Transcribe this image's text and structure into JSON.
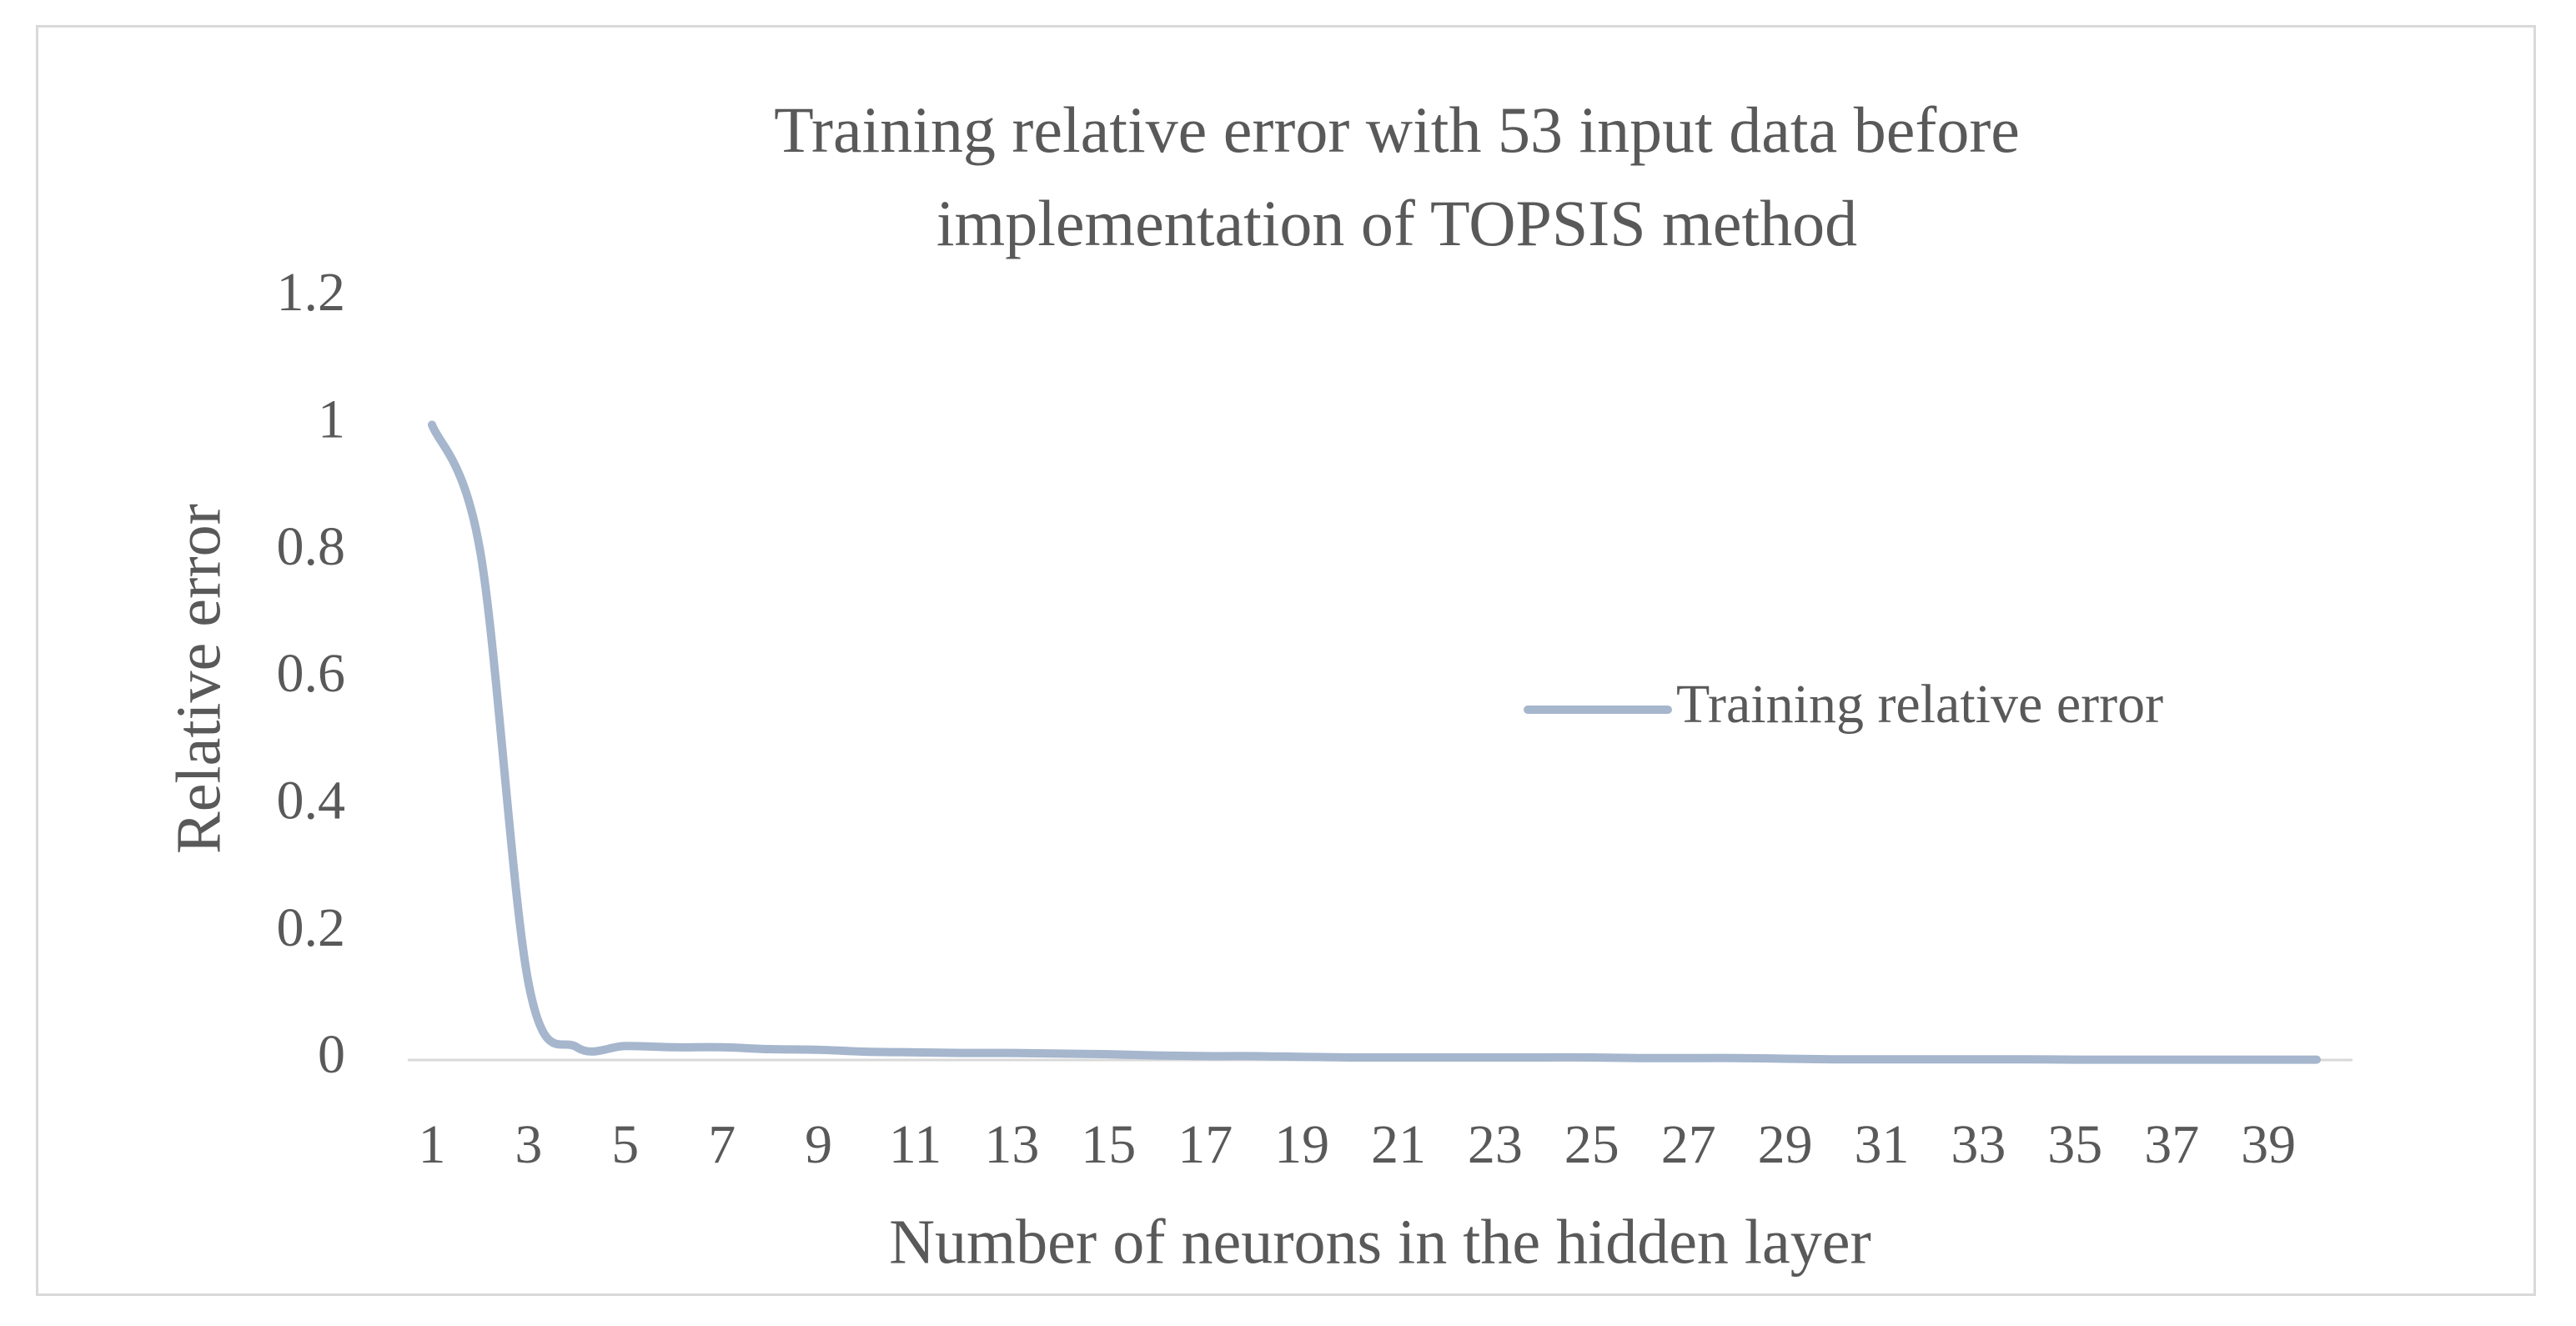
{
  "chart_data": {
    "type": "line",
    "title": "Training relative error with 53 input data before implementation of TOPSIS method",
    "x_label": "Number of neurons in the hidden layer",
    "y_label": "Relative error",
    "categories": [
      "1",
      null,
      "3",
      null,
      "5",
      null,
      "7",
      null,
      "9",
      null,
      "11",
      null,
      "13",
      null,
      "15",
      null,
      "17",
      null,
      "19",
      null,
      "21",
      null,
      "23",
      null,
      "25",
      null,
      "27",
      null,
      "29",
      null,
      "31",
      null,
      "33",
      null,
      "35",
      null,
      "37",
      null,
      "39",
      null
    ],
    "series": [
      {
        "name": "Training relative error",
        "color": "#a5b6cd",
        "values": [
          1.0,
          0.8,
          0.12,
          0.02,
          0.022,
          0.02,
          0.02,
          0.017,
          0.016,
          0.013,
          0.012,
          0.011,
          0.011,
          0.01,
          0.009,
          0.007,
          0.006,
          0.006,
          0.005,
          0.004,
          0.004,
          0.004,
          0.004,
          0.004,
          0.004,
          0.003,
          0.003,
          0.003,
          0.002,
          0.001,
          0.001,
          0.001,
          0.001,
          0.001,
          0.0005,
          0.0005,
          0.0005,
          0.0005,
          0.0005,
          0.0005
        ]
      }
    ],
    "ylim": [
      0,
      1.2
    ],
    "yticks": [
      0,
      0.2,
      0.4,
      0.6,
      0.8,
      1,
      1.2
    ],
    "legend": "right"
  }
}
